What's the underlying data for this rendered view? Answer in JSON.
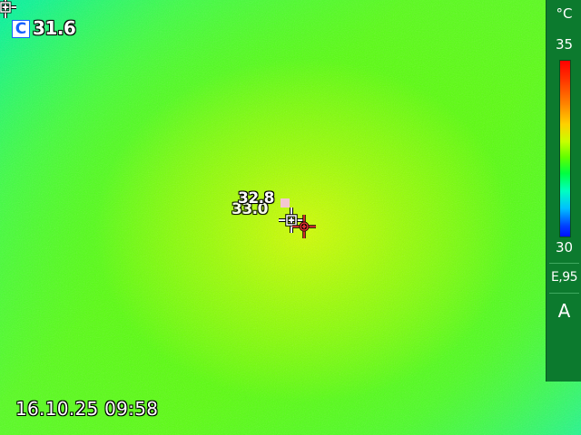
{
  "measurements": {
    "center_badge": "C",
    "center_value": "31.6",
    "spot_hot_value": "32.8",
    "spot_cold_value": "33.0"
  },
  "timestamp": "16.10.25 09:58",
  "scale": {
    "unit": "°C",
    "max": "35",
    "min": "30",
    "emissivity": "E,95",
    "mode": "A"
  },
  "icons": {
    "corner": "crosshair-icon",
    "center_spot": "crosshair-icon",
    "hot_spot": "crosshair-icon"
  },
  "colors": {
    "palette_hot": "#ff0000",
    "palette_cold": "#0010ff",
    "hot_marker": "#e03030",
    "center_badge": "#1560ff",
    "panel": "#0c7a2e"
  }
}
